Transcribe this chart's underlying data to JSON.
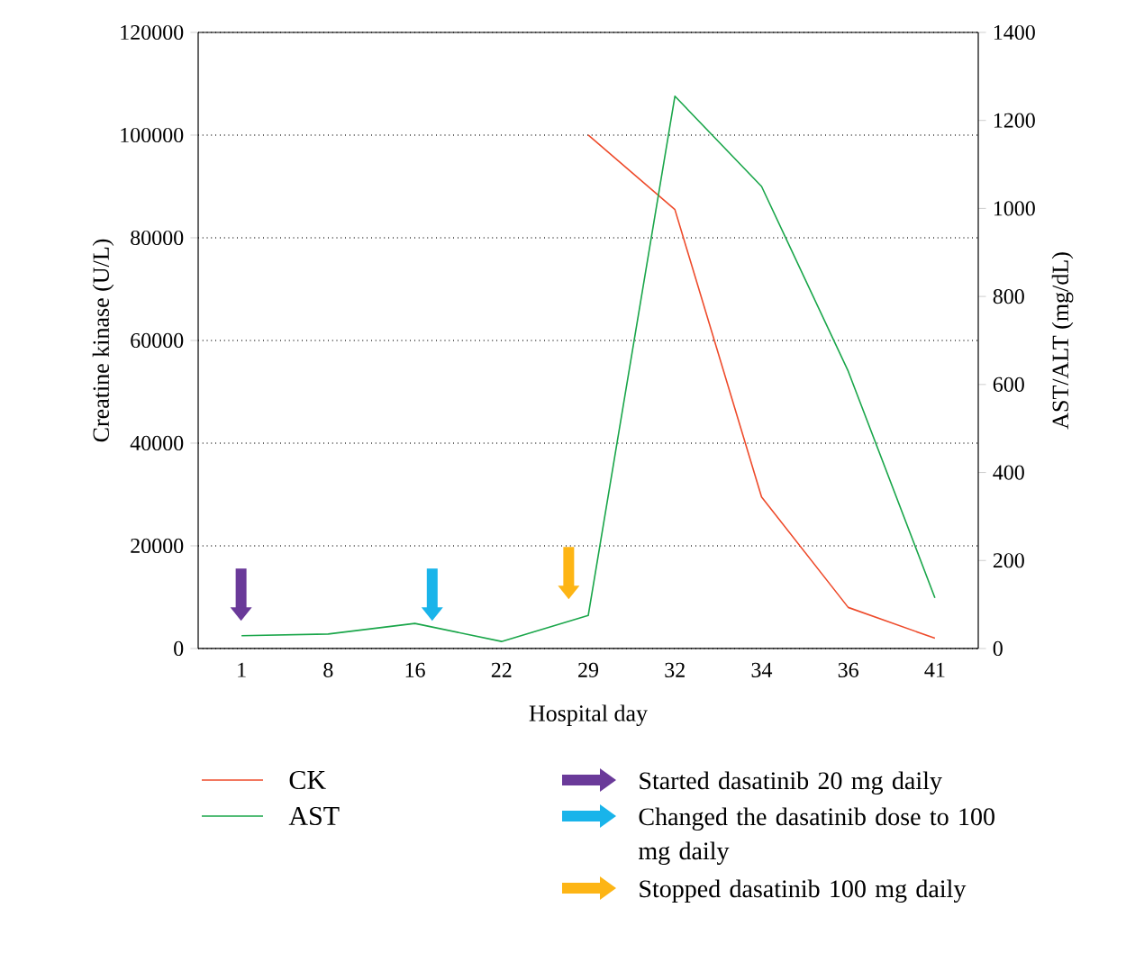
{
  "chart_data": {
    "type": "line",
    "xlabel": "Hospital day",
    "ylabel": "Creatine kinase (U/L)",
    "y2label": "AST/ALT (mg/dL)",
    "categories": [
      "1",
      "8",
      "16",
      "22",
      "29",
      "32",
      "34",
      "36",
      "41"
    ],
    "series": [
      {
        "name": "CK",
        "color": "#ee4b2b",
        "values": [
          null,
          null,
          null,
          null,
          100000,
          85500,
          29500,
          8000,
          2000
        ]
      },
      {
        "name": "AST",
        "color": "#1aa64a",
        "axis": "y2",
        "values": [
          29,
          33,
          57,
          16,
          75,
          1255,
          1050,
          630,
          115
        ]
      }
    ],
    "ylim": [
      0,
      120000
    ],
    "yticks": [
      0,
      20000,
      40000,
      60000,
      80000,
      100000,
      120000
    ],
    "y2lim": [
      0,
      1400
    ],
    "y2ticks": [
      0,
      200,
      400,
      600,
      800,
      1000,
      1200,
      1400
    ],
    "grid": "y",
    "legend": "bottom",
    "marker": "none",
    "line_style": "solid",
    "annotations": [
      "Started dasatinib 20 mg daily",
      "Changed the dasatinib dose to 100 mg daily",
      "Stopped dasatinib 100 mg daily"
    ]
  }
}
